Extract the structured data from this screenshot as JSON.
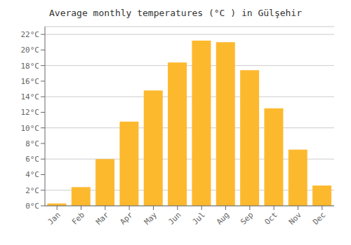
{
  "chart_data": {
    "type": "bar",
    "title": "Average monthly temperatures (°C ) in Gülşehir",
    "categories": [
      "Jan",
      "Feb",
      "Mar",
      "Apr",
      "May",
      "Jun",
      "Jul",
      "Aug",
      "Sep",
      "Oct",
      "Nov",
      "Dec"
    ],
    "values": [
      0.3,
      2.4,
      6.0,
      10.8,
      14.8,
      18.4,
      21.2,
      21.0,
      17.4,
      12.5,
      7.2,
      2.6
    ],
    "color": "#FDB92E",
    "ylim": [
      0,
      23
    ],
    "yticks": [
      {
        "value": 0,
        "label": "0°C"
      },
      {
        "value": 2,
        "label": "2°C"
      },
      {
        "value": 4,
        "label": "4°C"
      },
      {
        "value": 6,
        "label": "6°C"
      },
      {
        "value": 8,
        "label": "8°C"
      },
      {
        "value": 10,
        "label": "10°C"
      },
      {
        "value": 12,
        "label": "12°C"
      },
      {
        "value": 14,
        "label": "14°C"
      },
      {
        "value": 16,
        "label": "16°C"
      },
      {
        "value": 18,
        "label": "18°C"
      },
      {
        "value": 20,
        "label": "20°C"
      },
      {
        "value": 22,
        "label": "22°C"
      }
    ],
    "grid": true
  }
}
